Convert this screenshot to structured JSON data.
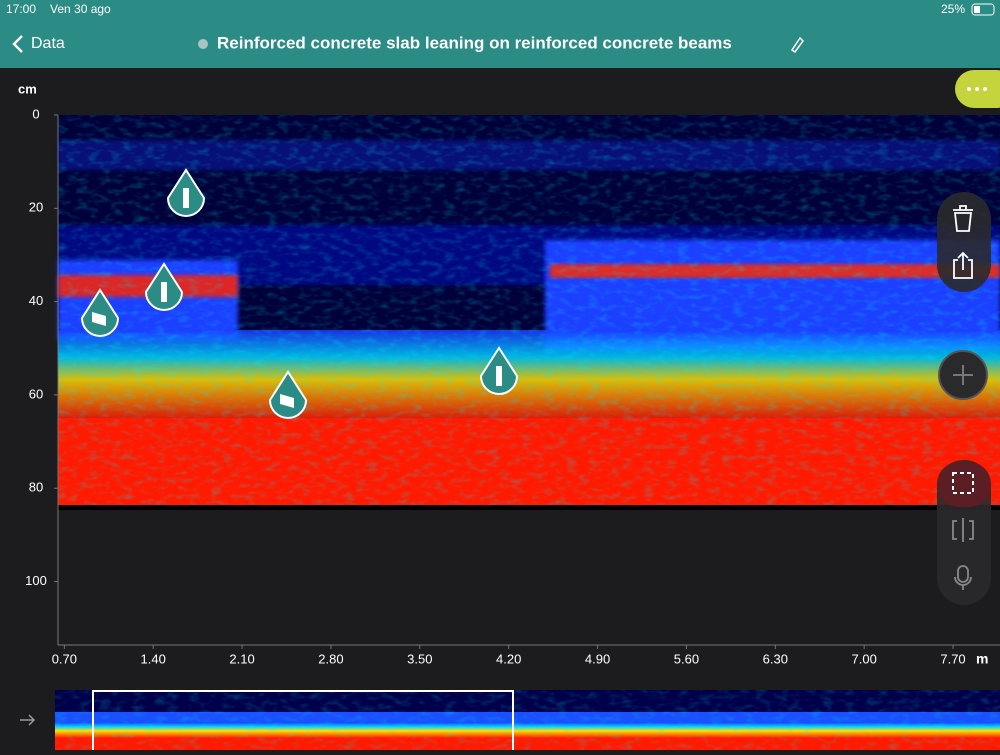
{
  "status_bar": {
    "time": "17:00",
    "date": "Ven 30 ago",
    "battery": "25%"
  },
  "nav_bar": {
    "back": "Data",
    "title": "Reinforced concrete slab leaning on reinforced concrete beams"
  },
  "scan": {
    "y_unit": "cm",
    "x_unit": "m",
    "ylim": [
      0,
      113.6
    ],
    "yticks": [
      0,
      20,
      40,
      60,
      80,
      100
    ],
    "xlim": [
      0.65,
      8.07
    ],
    "xticks": [
      {
        "value": 0.7,
        "label": "0.70"
      },
      {
        "value": 1.4,
        "label": "1.40"
      },
      {
        "value": 2.1,
        "label": "2.10"
      },
      {
        "value": 2.8,
        "label": "2.80"
      },
      {
        "value": 3.5,
        "label": "3.50"
      },
      {
        "value": 4.2,
        "label": "4.20"
      },
      {
        "value": 4.9,
        "label": "4.90"
      },
      {
        "value": 5.6,
        "label": "5.60"
      },
      {
        "value": 6.3,
        "label": "6.30"
      },
      {
        "value": 7.0,
        "label": "7.00"
      },
      {
        "value": 7.7,
        "label": "7.70"
      }
    ]
  }
}
